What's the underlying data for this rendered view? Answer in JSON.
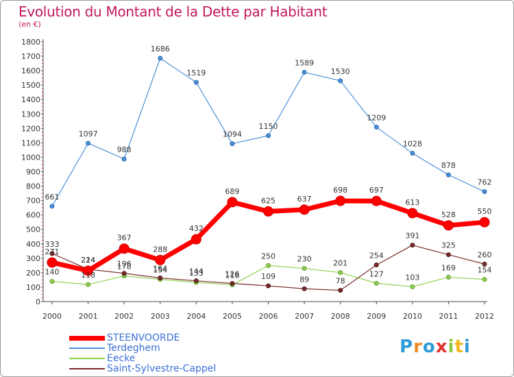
{
  "title": "Evolution du Montant de la Dette par Habitant",
  "subtitle": "(en €)",
  "chart_data": {
    "type": "line",
    "title": "Evolution du Montant de la Dette par Habitant",
    "subtitle": "(en €)",
    "x": [
      "2000",
      "2001",
      "2002",
      "2003",
      "2004",
      "2005",
      "2006",
      "2007",
      "2008",
      "2009",
      "2010",
      "2011",
      "2012"
    ],
    "ylim": [
      0,
      1800
    ],
    "yticks": [
      0,
      100,
      200,
      300,
      400,
      500,
      600,
      700,
      800,
      900,
      1000,
      1100,
      1200,
      1300,
      1400,
      1500,
      1600,
      1700,
      1800
    ],
    "grid": false,
    "legend_position": "bottom-left",
    "series": [
      {
        "name": "STEENVOORDE",
        "color": "#ff0000",
        "values": [
          271,
          214,
          367,
          288,
          432,
          689,
          625,
          637,
          698,
          697,
          613,
          528,
          550
        ]
      },
      {
        "name": "Terdeghem",
        "color": "#4a90d9",
        "values": [
          661,
          1097,
          988,
          1686,
          1519,
          1094,
          1150,
          1589,
          1530,
          1209,
          1028,
          878,
          762
        ]
      },
      {
        "name": "Eecke",
        "color": "#8fd14f",
        "values": [
          140,
          118,
          178,
          154,
          133,
          116,
          250,
          230,
          201,
          127,
          103,
          169,
          154
        ]
      },
      {
        "name": "Saint-Sylvestre-Cappel",
        "color": "#7b2c2c",
        "values": [
          333,
          224,
          196,
          164,
          144,
          126,
          109,
          89,
          78,
          254,
          391,
          325,
          260
        ]
      }
    ]
  },
  "logo": {
    "letters": [
      {
        "ch": "P",
        "color": "#2e9bd6"
      },
      {
        "ch": "r",
        "color": "#f08a24"
      },
      {
        "ch": "o",
        "color": "#2e9bd6"
      },
      {
        "ch": "x",
        "color": "#e0312f"
      },
      {
        "ch": "i",
        "color": "#8cc63f"
      },
      {
        "ch": "t",
        "color": "#f2b81c"
      },
      {
        "ch": "i",
        "color": "#2e9bd6"
      }
    ]
  }
}
